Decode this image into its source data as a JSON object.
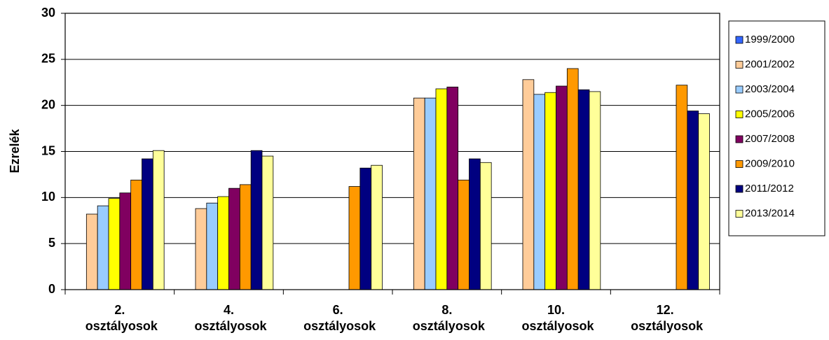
{
  "chart_data": {
    "type": "bar",
    "y_label": "Ezrelék",
    "categories": [
      "2. osztályosok",
      "4. osztályosok",
      "6. osztályosok",
      "8. osztályosok",
      "10. osztályosok",
      "12. osztályosok"
    ],
    "series": [
      {
        "name": "1999/2000",
        "color": "#3366ff",
        "values": [
          null,
          null,
          null,
          null,
          null,
          null
        ]
      },
      {
        "name": "2001/2002",
        "color": "#ffcc99",
        "values": [
          8.2,
          8.8,
          null,
          20.8,
          22.8,
          null
        ]
      },
      {
        "name": "2003/2004",
        "color": "#99ccff",
        "values": [
          9.1,
          9.4,
          null,
          20.8,
          21.2,
          null
        ]
      },
      {
        "name": "2005/2006",
        "color": "#ffff00",
        "values": [
          9.9,
          10.1,
          null,
          21.8,
          21.4,
          null
        ]
      },
      {
        "name": "2007/2008",
        "color": "#800060",
        "values": [
          10.5,
          11.0,
          null,
          22.0,
          22.1,
          null
        ]
      },
      {
        "name": "2009/2010",
        "color": "#ff9900",
        "values": [
          11.9,
          11.4,
          11.2,
          11.9,
          24.0,
          22.2
        ]
      },
      {
        "name": "2011/2012",
        "color": "#000080",
        "values": [
          14.2,
          15.1,
          13.2,
          14.2,
          21.7,
          19.4
        ]
      },
      {
        "name": "2013/2014",
        "color": "#ffff99",
        "values": [
          15.1,
          14.5,
          13.5,
          13.8,
          21.5,
          19.1
        ]
      }
    ],
    "ylim": [
      0,
      30
    ],
    "yticks": [
      0,
      5,
      10,
      15,
      20,
      25,
      30
    ],
    "grid": true,
    "legend": "right"
  }
}
